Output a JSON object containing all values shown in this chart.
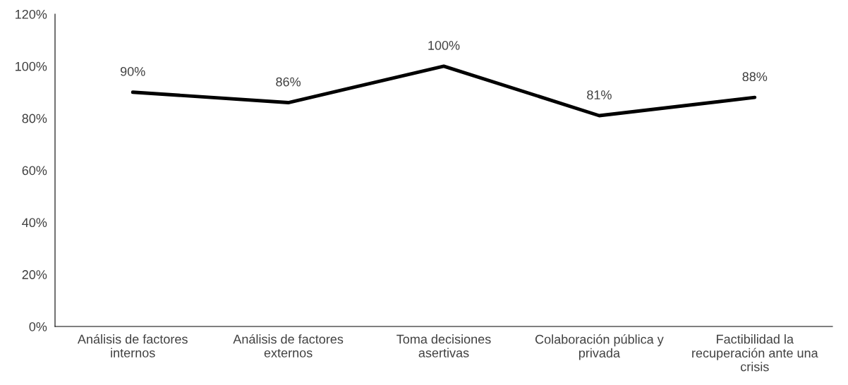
{
  "chart_data": {
    "type": "line",
    "categories": [
      "Análisis de factores internos",
      "Análisis de factores externos",
      "Toma decisiones asertivas",
      "Colaboración pública y privada",
      "Factibilidad la recuperación ante una crisis"
    ],
    "series": [
      {
        "color": "#000000",
        "values": [
          90,
          86,
          100,
          81,
          88
        ],
        "value_labels": [
          "90%",
          "86%",
          "100%",
          "81%",
          "88%"
        ]
      }
    ],
    "ylim": [
      0,
      120
    ],
    "yticks": [
      {
        "value": 0,
        "label": "0%"
      },
      {
        "value": 20,
        "label": "20%"
      },
      {
        "value": 40,
        "label": "40%"
      },
      {
        "value": 60,
        "label": "60%"
      },
      {
        "value": 80,
        "label": "80%"
      },
      {
        "value": 100,
        "label": "100%"
      },
      {
        "value": 120,
        "label": "120%"
      }
    ],
    "grid": false,
    "legend": false,
    "marker": "none",
    "line_style": "solid"
  }
}
